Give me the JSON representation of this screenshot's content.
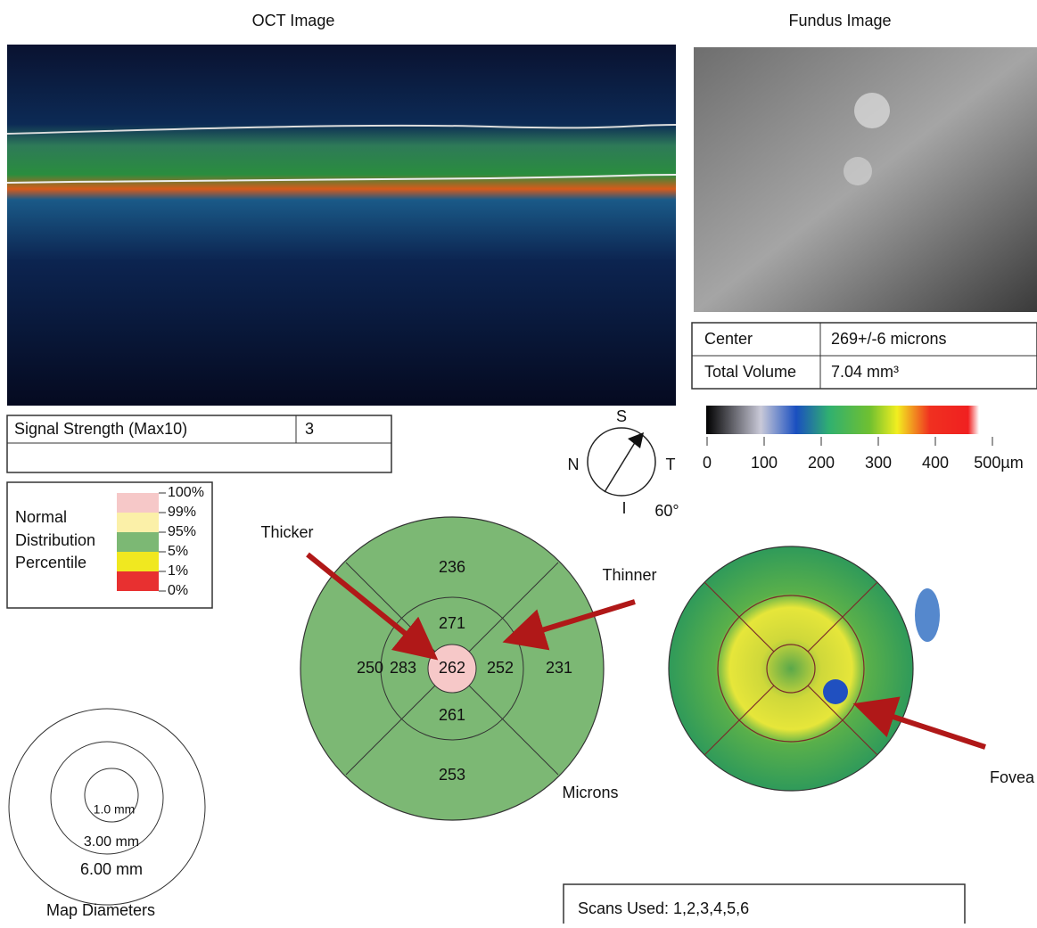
{
  "oct": {
    "title": "OCT Image"
  },
  "fundus": {
    "title": "Fundus Image"
  },
  "signal": {
    "label": "Signal Strength (Max10)",
    "value": "3"
  },
  "summary": {
    "rows": [
      [
        "Center",
        "269+/-6 microns"
      ],
      [
        "Total Volume",
        "7.04 mm³"
      ]
    ]
  },
  "colorbar": {
    "labels": [
      "0",
      "100",
      "200",
      "300",
      "400",
      "500µm"
    ]
  },
  "compass": {
    "superior": "S",
    "nasal": "N",
    "temporal": "T",
    "inferior": "I",
    "angle": "60°"
  },
  "legend": {
    "title": [
      "Normal",
      "Distribution",
      "Percentile"
    ],
    "levels": [
      "100%",
      "99%",
      "95%",
      "5%",
      "1%",
      "0%"
    ]
  },
  "thickness_map": {
    "center": "262",
    "inner": [
      "271",
      "252",
      "261",
      "283"
    ],
    "outer": [
      "236",
      "231",
      "253",
      "250"
    ],
    "annotations": {
      "thicker": "Thicker",
      "thinner": "Thinner",
      "units": "Microns",
      "fovea": "Fovea"
    }
  },
  "map_diameters": {
    "rings": [
      "1.0 mm",
      "3.00 mm",
      "6.00 mm"
    ],
    "title": "Map Diameters"
  },
  "scans": {
    "text": "Scans Used: 1,2,3,4,5,6"
  }
}
